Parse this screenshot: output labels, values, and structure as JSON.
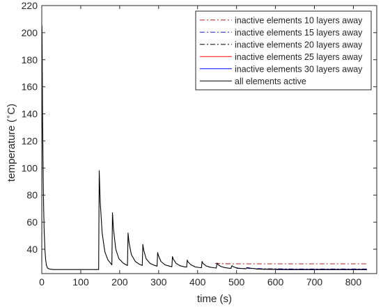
{
  "chart_data": {
    "type": "line",
    "title": "",
    "xlabel": "time (s)",
    "ylabel_main": "temperature ",
    "ylabel_degree": "∘",
    "ylabel_unit": "C)",
    "ylabel_open": "(",
    "xlim": [
      0,
      860
    ],
    "ylim": [
      22,
      220
    ],
    "xticks": [
      0,
      100,
      200,
      300,
      400,
      500,
      600,
      700,
      800
    ],
    "yticks": [
      40,
      60,
      80,
      100,
      120,
      140,
      160,
      180,
      200,
      220
    ],
    "legend_position": "top-right",
    "colors": {
      "axis": "#262626",
      "red": "#ff0000",
      "blue": "#0000ff",
      "black": "#000000",
      "darkred": "#b22222",
      "navy": "#1f1fbf"
    },
    "series": [
      {
        "name": "inactive elements 10 layers away",
        "color": "#b22222",
        "dash": "dashdot",
        "x": [
          445,
          455,
          470,
          490,
          520,
          560,
          600,
          650,
          700,
          750,
          800,
          835
        ],
        "y": [
          29.5,
          29.4,
          29.3,
          29.2,
          29.2,
          29.2,
          29.2,
          29.2,
          29.2,
          29.2,
          29.2,
          29.2
        ]
      },
      {
        "name": "inactive elements 15 layers away",
        "color": "#1f1fbf",
        "dash": "dashdot",
        "x": [
          500,
          550,
          600,
          650,
          700,
          750,
          800,
          835
        ],
        "y": [
          25.9,
          25.7,
          25.5,
          25.4,
          25.4,
          25.4,
          25.4,
          25.4
        ]
      },
      {
        "name": "inactive elements 20 layers away",
        "color": "#000000",
        "dash": "dashdot",
        "x": [
          550,
          600,
          650,
          700,
          750,
          800,
          835
        ],
        "y": [
          25.3,
          25.2,
          25.1,
          25.1,
          25.1,
          25.1,
          25.1
        ]
      },
      {
        "name": "inactive elements 25 layers away",
        "color": "#ff0000",
        "dash": "solid",
        "x": [
          580,
          650,
          700,
          750,
          800,
          835
        ],
        "y": [
          25.1,
          25.0,
          25.0,
          25.0,
          25.0,
          25.0
        ]
      },
      {
        "name": "inactive elements 30 layers away",
        "color": "#0000ff",
        "dash": "solid",
        "x": [
          600,
          650,
          700,
          750,
          800,
          835
        ],
        "y": [
          25.0,
          24.9,
          24.9,
          24.9,
          24.9,
          24.9
        ]
      },
      {
        "name": "all elements active",
        "color": "#000000",
        "dash": "solid",
        "x": [
          0,
          0.5,
          1,
          2,
          3,
          4,
          5,
          6,
          8,
          10,
          12,
          15,
          20,
          30,
          60,
          100,
          146,
          146,
          147.5,
          150,
          155,
          162,
          170,
          180,
          180,
          181.5,
          184,
          190,
          198,
          210,
          220,
          220,
          221.5,
          224,
          230,
          240,
          250,
          258,
          258,
          259.5,
          262,
          268,
          278,
          290,
          296,
          296,
          297.5,
          300,
          306,
          316,
          328,
          334,
          334,
          335.5,
          338,
          345,
          355,
          366,
          372,
          372,
          373.5,
          376,
          383,
          393,
          404,
          410,
          410,
          411.5,
          414,
          421,
          431,
          442,
          448,
          448,
          450,
          453,
          460,
          470,
          480,
          486,
          486,
          488,
          492,
          500,
          510,
          520,
          524,
          524,
          527,
          535,
          550,
          570,
          600,
          650,
          700,
          750,
          800,
          835
        ],
        "y": [
          30,
          205,
          190,
          140,
          110,
          85,
          68,
          55,
          40,
          32,
          28,
          26,
          25.3,
          25,
          25,
          25,
          25,
          25,
          98,
          75,
          52,
          38,
          32,
          28.5,
          28.5,
          67,
          55,
          40,
          33,
          29.5,
          28,
          28,
          52,
          45,
          36,
          31,
          29,
          28,
          28,
          43.5,
          39,
          33,
          29.5,
          28,
          27.5,
          27.5,
          37.5,
          35,
          31,
          28.5,
          27.5,
          27,
          27,
          34.5,
          32.5,
          29.5,
          27.8,
          27,
          26.8,
          26.8,
          32,
          30.5,
          28.5,
          27,
          26.5,
          26.3,
          26.3,
          31,
          29.5,
          27.8,
          26.8,
          26.3,
          26.1,
          26.1,
          29.8,
          28.5,
          27.2,
          26.4,
          26,
          25.9,
          25.9,
          27.8,
          27,
          26.2,
          25.8,
          25.6,
          25.5,
          25.5,
          26.5,
          26,
          25.5,
          25.2,
          25.1,
          25,
          25,
          25,
          25,
          25
        ]
      }
    ]
  }
}
